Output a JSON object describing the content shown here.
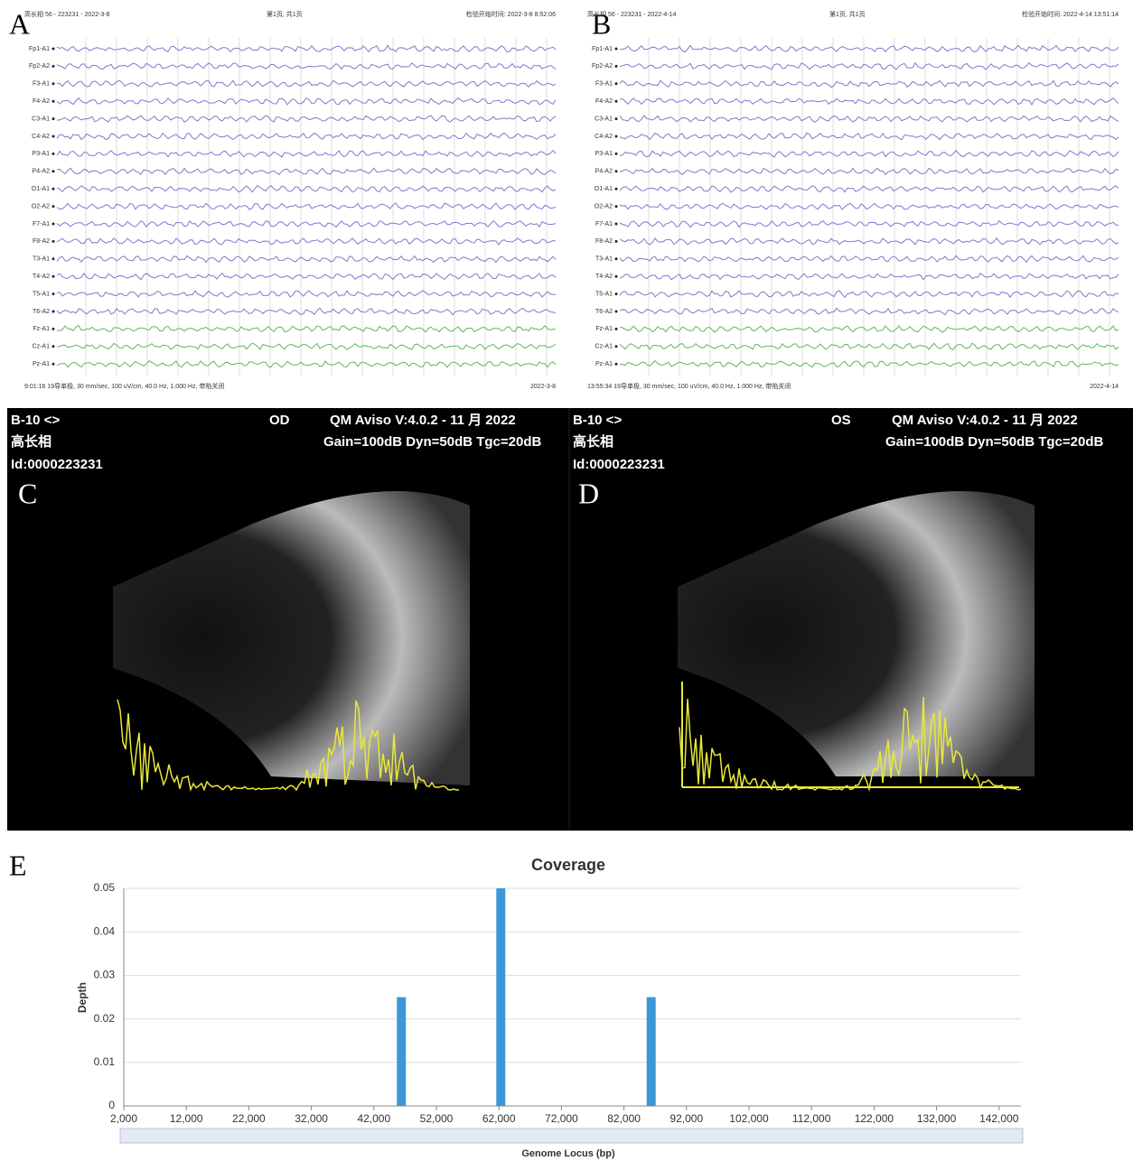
{
  "panels": {
    "a": "A",
    "b": "B",
    "c": "C",
    "d": "D",
    "e": "E"
  },
  "eeg": [
    {
      "header_left": "高长相 56 - 223231 - 2022-3-8",
      "header_mid": "第1页, 共1页",
      "header_right": "检验开始时间: 2022-3-8 8:52:06",
      "footer_left": "9:01:16 19导单极, 30 mm/sec, 100 uV/cm, 40.0 Hz, 1.000 Hz, 带陷关闭",
      "footer_right": "2022-3-8"
    },
    {
      "header_left": "高长相 56 - 223231 - 2022-4-14",
      "header_mid": "第1页, 共1页",
      "header_right": "检验开始时间: 2022-4-14 13:51:14",
      "footer_left": "13:55:34 19导单极, 30 mm/sec, 100 uV/cm, 40.0 Hz, 1.000 Hz, 带陷关闭",
      "footer_right": "2022-4-14"
    }
  ],
  "channels": [
    "Fp1-A1",
    "Fp2-A2",
    "F3-A1",
    "F4-A2",
    "C3-A1",
    "C4-A2",
    "P3-A1",
    "P4-A2",
    "O1-A1",
    "O2-A2",
    "F7-A1",
    "F8-A2",
    "T3-A1",
    "T4-A2",
    "T5-A1",
    "T6-A2",
    "Fz-A1",
    "Cz-A1",
    "Pz-A1"
  ],
  "ultrasound": [
    {
      "mode": "B-10 <>",
      "eye": "OD",
      "version": "QM Aviso V:4.0.2 - 11 月 2022",
      "name": "高长相",
      "settings": "Gain=100dB Dyn=50dB Tgc=20dB",
      "id": "Id:0000223231"
    },
    {
      "mode": "B-10 <>",
      "eye": "OS",
      "version": "QM Aviso V:4.0.2 - 11 月 2022",
      "name": "高长相",
      "settings": "Gain=100dB Dyn=50dB Tgc=20dB",
      "id": "Id:0000223231"
    }
  ],
  "chart_data": {
    "type": "bar",
    "title": "Coverage",
    "x_label": "Genome Locus (bp)",
    "y_label": "Depth",
    "x": [
      46400,
      62300,
      86350
    ],
    "values": [
      0.025,
      0.05,
      0.025
    ],
    "color": "#3b98d6",
    "xlim": [
      2000,
      145500
    ],
    "ylim": [
      0,
      0.05
    ],
    "xticks": [
      {
        "value": 2000,
        "label": "2,000"
      },
      {
        "value": 12000,
        "label": "12,000"
      },
      {
        "value": 22000,
        "label": "22,000"
      },
      {
        "value": 32000,
        "label": "32,000"
      },
      {
        "value": 42000,
        "label": "42,000"
      },
      {
        "value": 52000,
        "label": "52,000"
      },
      {
        "value": 62000,
        "label": "62,000"
      },
      {
        "value": 72000,
        "label": "72,000"
      },
      {
        "value": 82000,
        "label": "82,000"
      },
      {
        "value": 92000,
        "label": "92,000"
      },
      {
        "value": 102000,
        "label": "102,000"
      },
      {
        "value": 112000,
        "label": "112,000"
      },
      {
        "value": 122000,
        "label": "122,000"
      },
      {
        "value": 132000,
        "label": "132,000"
      },
      {
        "value": 142000,
        "label": "142,000"
      }
    ],
    "yticks": [
      0,
      0.01,
      0.02,
      0.03,
      0.04,
      0.05
    ],
    "grid": true
  }
}
